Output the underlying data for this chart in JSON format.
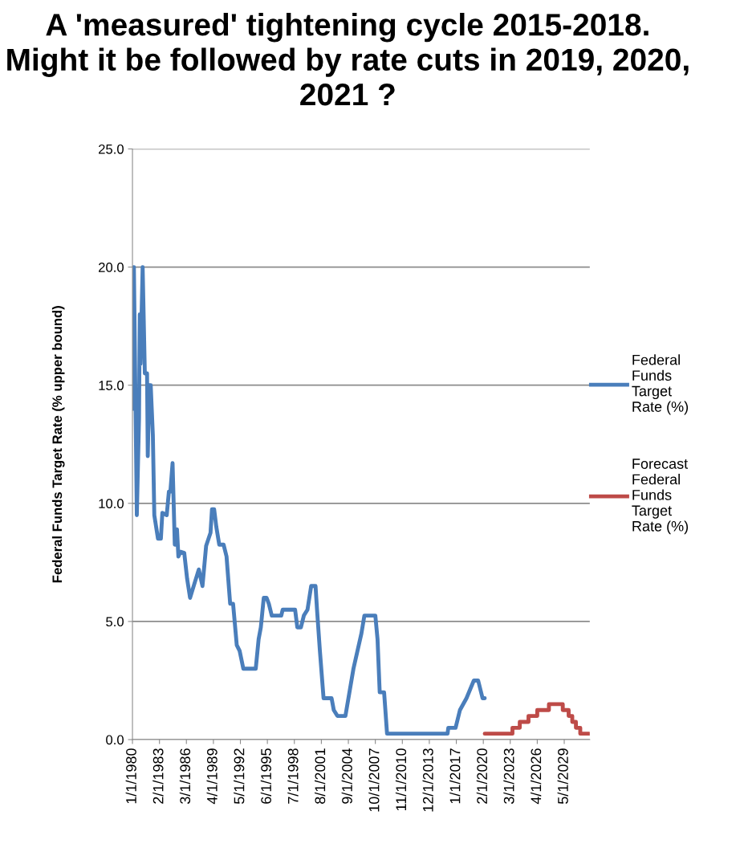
{
  "chart_data": {
    "type": "line",
    "title": "A 'measured' tightening cycle 2015-2018. Might it be followed by rate cuts in 2019, 2020, 2021 ?",
    "ylabel": "Federal Funds Target Rate (% upper bound)",
    "series": [
      {
        "name": "Federal Funds Target Rate (%)",
        "color": "#4a7ebb",
        "x": [
          "1980-01",
          "1980-03",
          "1980-07",
          "1980-10",
          "1980-11",
          "1980-12",
          "1981-03",
          "1981-06",
          "1981-09",
          "1981-10",
          "1981-12",
          "1982-02",
          "1982-05",
          "1982-07",
          "1982-12",
          "1983-04",
          "1983-06",
          "1983-12",
          "1984-03",
          "1984-05",
          "1984-08",
          "1984-11",
          "1985-02",
          "1985-04",
          "1985-07",
          "1985-12",
          "1986-04",
          "1986-08",
          "1987-03",
          "1987-08",
          "1988-01",
          "1988-06",
          "1988-12",
          "1989-02",
          "1989-05",
          "1989-08",
          "1989-12",
          "1990-06",
          "1990-10",
          "1991-03",
          "1991-07",
          "1991-12",
          "1992-04",
          "1992-09",
          "1994-02",
          "1994-06",
          "1994-09",
          "1995-01",
          "1995-05",
          "1995-08",
          "1995-12",
          "1997-01",
          "1997-03",
          "1998-08",
          "1998-11",
          "1999-04",
          "1999-08",
          "2000-01",
          "2000-06",
          "2000-12",
          "2001-02",
          "2001-06",
          "2001-11",
          "2002-10",
          "2003-01",
          "2003-06",
          "2004-05",
          "2005-04",
          "2006-03",
          "2006-07",
          "2007-10",
          "2008-01",
          "2008-04",
          "2008-10",
          "2009-02",
          "2016-01",
          "2016-02",
          "2016-12",
          "2017-06",
          "2018-03",
          "2019-01",
          "2019-07",
          "2020-01",
          "2020-04"
        ],
        "values": [
          14.0,
          20.0,
          9.5,
          13.6,
          18.0,
          15.9,
          20.0,
          15.5,
          15.5,
          12.0,
          15.0,
          15.0,
          12.9,
          9.5,
          8.5,
          8.5,
          9.6,
          9.5,
          10.5,
          10.5,
          11.7,
          8.25,
          8.9,
          7.75,
          7.95,
          7.9,
          6.8,
          6.0,
          6.7,
          7.2,
          6.5,
          8.2,
          8.75,
          9.75,
          9.75,
          9.0,
          8.25,
          8.25,
          7.75,
          5.75,
          5.75,
          4.0,
          3.75,
          3.0,
          3.0,
          4.25,
          4.75,
          6.0,
          6.0,
          5.75,
          5.25,
          5.25,
          5.5,
          5.5,
          4.75,
          4.75,
          5.25,
          5.5,
          6.5,
          6.5,
          5.5,
          3.75,
          1.75,
          1.75,
          1.25,
          1.0,
          1.0,
          3.0,
          4.5,
          5.25,
          5.25,
          4.25,
          2.0,
          2.0,
          0.25,
          0.25,
          0.5,
          0.5,
          1.25,
          1.75,
          2.5,
          2.5,
          1.75,
          1.75
        ]
      },
      {
        "name": "Forecast Federal Funds Target Rate (%)",
        "type": "step",
        "color": "#be4b48",
        "x": [
          "2020-04",
          "2023-06",
          "2024-04",
          "2025-04",
          "2026-04",
          "2027-08",
          "2029-03",
          "2029-11",
          "2030-04",
          "2030-09",
          "2031-03",
          "2032-03"
        ],
        "values": [
          0.25,
          0.5,
          0.75,
          1.0,
          1.25,
          1.5,
          1.25,
          1.0,
          0.75,
          0.5,
          0.25,
          0.25
        ]
      }
    ],
    "xlim": [
      "1980-01",
      "2032-04"
    ],
    "xticks": [
      {
        "value": "1980-01",
        "label": "1/1/1980"
      },
      {
        "value": "1983-02",
        "label": "2/1/1983"
      },
      {
        "value": "1986-03",
        "label": "3/1/1986"
      },
      {
        "value": "1989-04",
        "label": "4/1/1989"
      },
      {
        "value": "1992-05",
        "label": "5/1/1992"
      },
      {
        "value": "1995-06",
        "label": "6/1/1995"
      },
      {
        "value": "1998-07",
        "label": "7/1/1998"
      },
      {
        "value": "2001-08",
        "label": "8/1/2001"
      },
      {
        "value": "2004-09",
        "label": "9/1/2004"
      },
      {
        "value": "2007-10",
        "label": "10/1/2007"
      },
      {
        "value": "2010-11",
        "label": "11/1/2010"
      },
      {
        "value": "2013-12",
        "label": "12/1/2013"
      },
      {
        "value": "2017-01",
        "label": "1/1/2017"
      },
      {
        "value": "2020-02",
        "label": "2/1/2020"
      },
      {
        "value": "2023-03",
        "label": "3/1/2023"
      },
      {
        "value": "2026-04",
        "label": "4/1/2026"
      },
      {
        "value": "2029-05",
        "label": "5/1/2029"
      }
    ],
    "ylim": [
      0,
      25
    ],
    "yticks": [
      {
        "value": 0,
        "label": "0.0"
      },
      {
        "value": 5,
        "label": "5.0"
      },
      {
        "value": 10,
        "label": "10.0"
      },
      {
        "value": 15,
        "label": "15.0"
      },
      {
        "value": 20,
        "label": "20.0"
      },
      {
        "value": 25,
        "label": "25.0"
      }
    ],
    "grid": "y",
    "legend": "right"
  }
}
